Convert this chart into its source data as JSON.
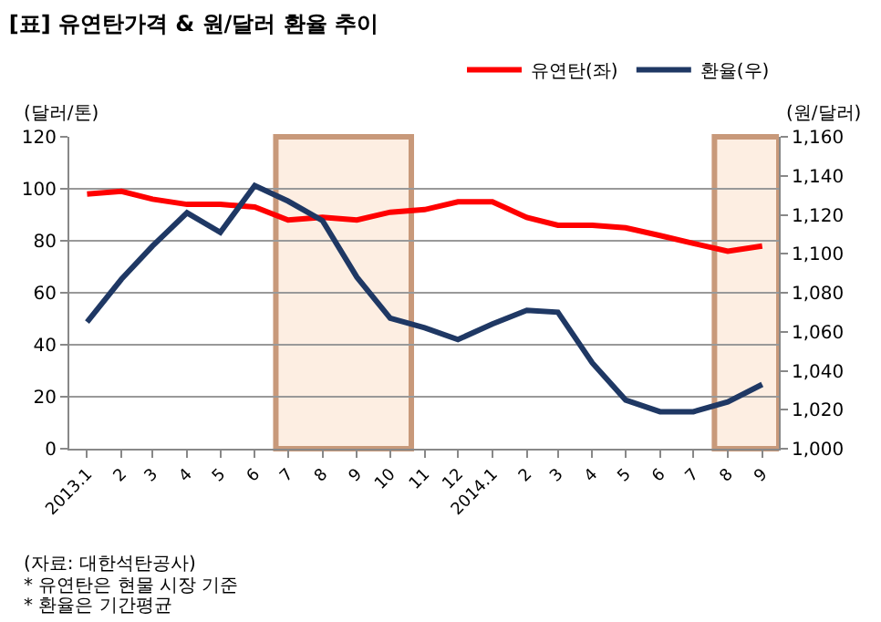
{
  "chart_data": {
    "type": "line",
    "title": "[표] 유연탄가격 & 원/달러 환율 추이",
    "ylabel": "(달러/톤)",
    "y2label": "(원/달러)",
    "x": [
      "2013-01",
      "2013-02",
      "2013-03",
      "2013-04",
      "2013-05",
      "2013-06",
      "2013-07",
      "2013-08",
      "2013-09",
      "2013-10",
      "2013-11",
      "2013-12",
      "2014-01",
      "2014-02",
      "2014-03",
      "2014-04",
      "2014-05",
      "2014-06",
      "2014-07",
      "2014-08",
      "2014-09"
    ],
    "series": [
      {
        "name": "유연탄(좌)",
        "color": "#ff0000",
        "values": [
          98,
          99,
          96,
          94,
          94,
          93,
          88,
          89,
          88,
          91,
          92,
          95,
          95,
          89,
          86,
          86,
          85,
          82,
          79,
          76,
          78
        ]
      },
      {
        "name": "환율(우)",
        "color": "#1f3864",
        "axis": "y2",
        "values": [
          1065,
          1087,
          1104,
          1121,
          1111,
          1135,
          1127,
          1117,
          1088,
          1067,
          1062,
          1056,
          1064,
          1071,
          1070,
          1044,
          1025,
          1019,
          1019,
          1024,
          1033
        ]
      }
    ],
    "xlim": [
      "2012-12-16",
      "2014-09-16"
    ],
    "xticks": [
      {
        "value": "2013-01",
        "label": "2013.1"
      },
      {
        "value": "2013-02",
        "label": "2"
      },
      {
        "value": "2013-03",
        "label": "3"
      },
      {
        "value": "2013-04",
        "label": "4"
      },
      {
        "value": "2013-05",
        "label": "5"
      },
      {
        "value": "2013-06",
        "label": "6"
      },
      {
        "value": "2013-07",
        "label": "7"
      },
      {
        "value": "2013-08",
        "label": "8"
      },
      {
        "value": "2013-09",
        "label": "9"
      },
      {
        "value": "2013-10",
        "label": "10"
      },
      {
        "value": "2013-11",
        "label": "11"
      },
      {
        "value": "2013-12",
        "label": "12"
      },
      {
        "value": "2014-01",
        "label": "2014.1"
      },
      {
        "value": "2014-02",
        "label": "2"
      },
      {
        "value": "2014-03",
        "label": "3"
      },
      {
        "value": "2014-04",
        "label": "4"
      },
      {
        "value": "2014-05",
        "label": "5"
      },
      {
        "value": "2014-06",
        "label": "6"
      },
      {
        "value": "2014-07",
        "label": "7"
      },
      {
        "value": "2014-08",
        "label": "8"
      },
      {
        "value": "2014-09",
        "label": "9"
      }
    ],
    "ylim": [
      0,
      120
    ],
    "yticks": [
      0,
      20,
      40,
      60,
      80,
      100,
      120
    ],
    "y2lim": [
      1000,
      1160
    ],
    "y2ticks": [
      {
        "value": 1000,
        "label": "1,000"
      },
      {
        "value": 1020,
        "label": "1,020"
      },
      {
        "value": 1040,
        "label": "1,040"
      },
      {
        "value": 1060,
        "label": "1,060"
      },
      {
        "value": 1080,
        "label": "1,080"
      },
      {
        "value": 1100,
        "label": "1,100"
      },
      {
        "value": 1120,
        "label": "1,120"
      },
      {
        "value": 1140,
        "label": "1,140"
      },
      {
        "value": 1160,
        "label": "1,160"
      }
    ],
    "bands": [
      {
        "axis": "x",
        "from": "2013-06-20",
        "to": "2013-10-20",
        "color": "#fdeee2"
      },
      {
        "axis": "x",
        "from": "2014-07-20",
        "to": "2014-09-16",
        "color": "#fdeee2"
      }
    ],
    "grid": "y",
    "legend": "top right",
    "marker": "none",
    "line_style": "solid",
    "annotations": [
      "(자료: 대한석탄공사)",
      "* 유연탄은 현물 시장 기준",
      "* 환율은 기간평균"
    ]
  }
}
